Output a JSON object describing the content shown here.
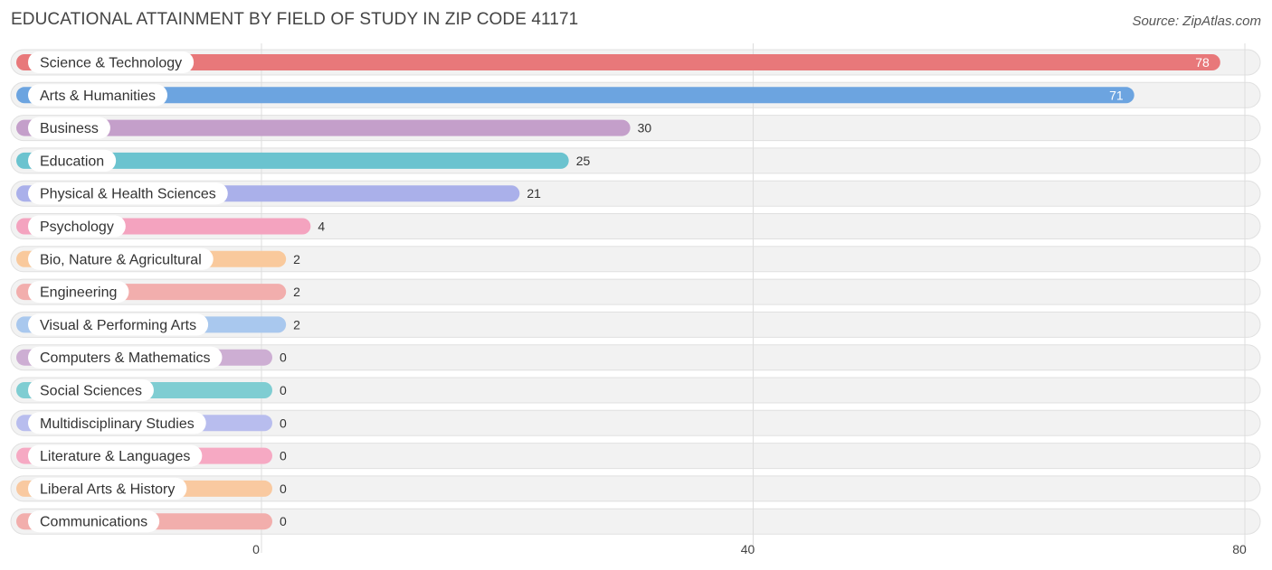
{
  "header": {
    "title": "EDUCATIONAL ATTAINMENT BY FIELD OF STUDY IN ZIP CODE 41171",
    "source": "Source: ZipAtlas.com"
  },
  "chart_data": {
    "type": "bar",
    "orientation": "horizontal",
    "title": "EDUCATIONAL ATTAINMENT BY FIELD OF STUDY IN ZIP CODE 41171",
    "xlabel": "",
    "ylabel": "",
    "xlim": [
      0,
      80
    ],
    "xticks": [
      0,
      40,
      80
    ],
    "grid": true,
    "categories": [
      "Science & Technology",
      "Arts & Humanities",
      "Business",
      "Education",
      "Physical & Health Sciences",
      "Psychology",
      "Bio, Nature & Agricultural",
      "Engineering",
      "Visual & Performing Arts",
      "Computers & Mathematics",
      "Social Sciences",
      "Multidisciplinary Studies",
      "Literature & Languages",
      "Liberal Arts & History",
      "Communications"
    ],
    "values": [
      78,
      71,
      30,
      25,
      21,
      4,
      2,
      2,
      2,
      0,
      0,
      0,
      0,
      0,
      0
    ],
    "colors": [
      "#e8787a",
      "#6ca4e0",
      "#c49fca",
      "#6bc3cf",
      "#aab0ea",
      "#f4a3bf",
      "#f9c99c",
      "#f2aead",
      "#a9c8ee",
      "#cdaed3",
      "#7fcdd2",
      "#b8bdee",
      "#f6a9c3",
      "#f9c9a0",
      "#f2aeac"
    ]
  }
}
